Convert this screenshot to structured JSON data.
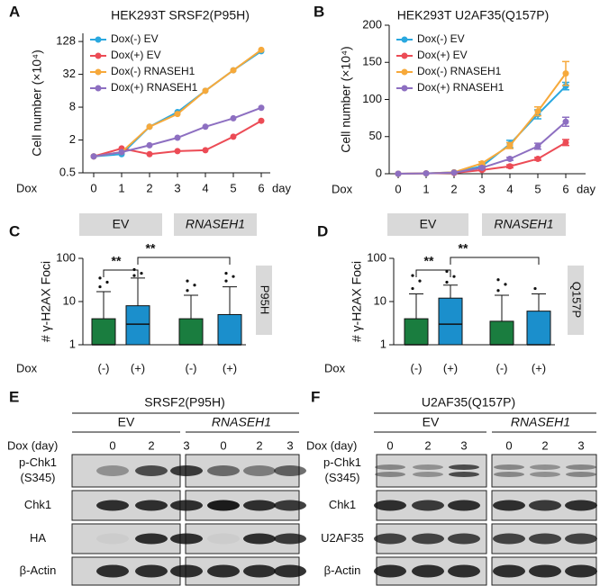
{
  "chart_data": [
    {
      "panel": "A",
      "type": "line",
      "title": "HEK293T SRSF2(P95H)",
      "ylabel": "Cell number (×10⁴)",
      "x_prefix": "Dox",
      "x_suffix": "day",
      "x": [
        0,
        1,
        2,
        3,
        4,
        5,
        6
      ],
      "xlim": [
        0,
        6
      ],
      "xticks": [
        0,
        1,
        2,
        3,
        4,
        5,
        6
      ],
      "ylim": [
        0.5,
        181
      ],
      "yticks": [
        0.5,
        2,
        8,
        32,
        128
      ],
      "log_base": 2,
      "legend": "upper left",
      "series": [
        {
          "name": "Dox(-) EV",
          "color": "#2aa8df",
          "values": [
            1,
            1.1,
            3.5,
            6.5,
            16,
            38,
            85
          ]
        },
        {
          "name": "Dox(+) EV",
          "color": "#ec4b55",
          "values": [
            1,
            1.4,
            1.1,
            1.25,
            1.3,
            2.3,
            4.5
          ]
        },
        {
          "name": "Dox(-) RNASEH1",
          "color": "#f6a93b",
          "values": [
            1,
            1.2,
            3.5,
            6,
            16,
            38,
            90
          ]
        },
        {
          "name": "Dox(+) RNASEH1",
          "color": "#8d6fc1",
          "values": [
            1,
            1.2,
            1.6,
            2.2,
            3.5,
            5,
            7.8
          ]
        }
      ]
    },
    {
      "panel": "B",
      "type": "line",
      "title": "HEK293T U2AF35(Q157P)",
      "ylabel": "Cell number (×10⁴)",
      "x_prefix": "Dox",
      "x_suffix": "day",
      "x": [
        0,
        1,
        2,
        3,
        4,
        5,
        6
      ],
      "xlim": [
        0,
        6
      ],
      "xticks": [
        0,
        1,
        2,
        3,
        4,
        5,
        6
      ],
      "ylim": [
        0,
        200
      ],
      "yticks": [
        0,
        50,
        100,
        150,
        200
      ],
      "legend": "upper left",
      "series": [
        {
          "name": "Dox(-) EV",
          "color": "#2aa8df",
          "values": [
            0,
            0.5,
            2,
            10,
            40,
            80,
            118
          ],
          "errors": [
            0,
            0,
            0,
            1,
            5,
            6,
            5
          ]
        },
        {
          "name": "Dox(+) EV",
          "color": "#ec4b55",
          "values": [
            0,
            0.5,
            1,
            5,
            10,
            20,
            42
          ],
          "errors": [
            0,
            0,
            0,
            1,
            2,
            2,
            4
          ]
        },
        {
          "name": "Dox(-) RNASEH1",
          "color": "#f6a93b",
          "values": [
            0,
            0.5,
            2,
            14,
            38,
            84,
            135
          ],
          "errors": [
            0,
            0,
            0,
            2,
            4,
            6,
            16
          ]
        },
        {
          "name": "Dox(+) RNASEH1",
          "color": "#8d6fc1",
          "values": [
            0,
            0.5,
            1.5,
            8,
            20,
            37,
            70
          ],
          "errors": [
            0,
            0,
            0,
            1,
            2,
            4,
            6
          ]
        }
      ]
    },
    {
      "panel": "C",
      "type": "box",
      "ylabel": "# γ-H2AX Foci",
      "x_prefix": "Dox",
      "categories": [
        "(-)",
        "(+)",
        "(-)",
        "(+)"
      ],
      "groups": [
        "EV",
        "RNASEH1"
      ],
      "side_label": "P95H",
      "ylim": [
        1,
        100
      ],
      "yticks": [
        1,
        10,
        100
      ],
      "log_base": 10,
      "boxes": [
        {
          "color": "#1a7d3f",
          "min": 1,
          "q1": 1,
          "median": 1,
          "q3": 4,
          "max": 17,
          "outliers": [
            22,
            28,
            35
          ]
        },
        {
          "color": "#1b8fcc",
          "min": 1,
          "q1": 1,
          "median": 3,
          "q3": 8,
          "max": 35,
          "outliers": [
            40,
            45,
            55
          ]
        },
        {
          "color": "#1a7d3f",
          "min": 1,
          "q1": 1,
          "median": 1,
          "q3": 4,
          "max": 14,
          "outliers": [
            18,
            24,
            30
          ]
        },
        {
          "color": "#1b8fcc",
          "min": 1,
          "q1": 1,
          "median": 1,
          "q3": 5,
          "max": 22,
          "outliers": [
            30,
            38,
            45
          ]
        }
      ],
      "annotations": [
        {
          "text": "**",
          "from": 0,
          "to": 1
        },
        {
          "text": "**",
          "from": 1,
          "to": 3
        }
      ]
    },
    {
      "panel": "D",
      "type": "box",
      "ylabel": "# γ-H2AX Foci",
      "x_prefix": "Dox",
      "categories": [
        "(-)",
        "(+)",
        "(-)",
        "(+)"
      ],
      "groups": [
        "EV",
        "RNASEH1"
      ],
      "side_label": "Q157P",
      "ylim": [
        1,
        100
      ],
      "yticks": [
        1,
        10,
        100
      ],
      "log_base": 10,
      "boxes": [
        {
          "color": "#1a7d3f",
          "min": 1,
          "q1": 1,
          "median": 1,
          "q3": 4,
          "max": 15,
          "outliers": [
            20,
            30,
            40
          ]
        },
        {
          "color": "#1b8fcc",
          "min": 1,
          "q1": 1,
          "median": 3,
          "q3": 12,
          "max": 24,
          "outliers": [
            28,
            38,
            50
          ]
        },
        {
          "color": "#1a7d3f",
          "min": 1,
          "q1": 1,
          "median": 1,
          "q3": 3.5,
          "max": 14,
          "outliers": [
            18,
            25,
            32
          ]
        },
        {
          "color": "#1b8fcc",
          "min": 1,
          "q1": 1,
          "median": 1,
          "q3": 6,
          "max": 15,
          "outliers": [
            20
          ]
        }
      ],
      "annotations": [
        {
          "text": "**",
          "from": 0,
          "to": 1
        },
        {
          "text": "**",
          "from": 1,
          "to": 3
        }
      ]
    }
  ],
  "blots": [
    {
      "panel": "E",
      "title": "SRSF2(P95H)",
      "groups": [
        "EV",
        "RNASEH1"
      ],
      "lane_header": "Dox (day)",
      "lanes": [
        0,
        2,
        3,
        0,
        2,
        3
      ],
      "rows": [
        [
          "p-Chk1",
          "(S345)"
        ],
        [
          "Chk1"
        ],
        [
          "HA"
        ],
        [
          "β-Actin"
        ]
      ]
    },
    {
      "panel": "F",
      "title": "U2AF35(Q157P)",
      "groups": [
        "EV",
        "RNASEH1"
      ],
      "lane_header": "Dox (day)",
      "lanes": [
        0,
        2,
        3,
        0,
        2,
        3
      ],
      "rows": [
        [
          "p-Chk1",
          "(S345)"
        ],
        [
          "Chk1"
        ],
        [
          "U2AF35"
        ],
        [
          "β-Actin"
        ]
      ]
    }
  ]
}
